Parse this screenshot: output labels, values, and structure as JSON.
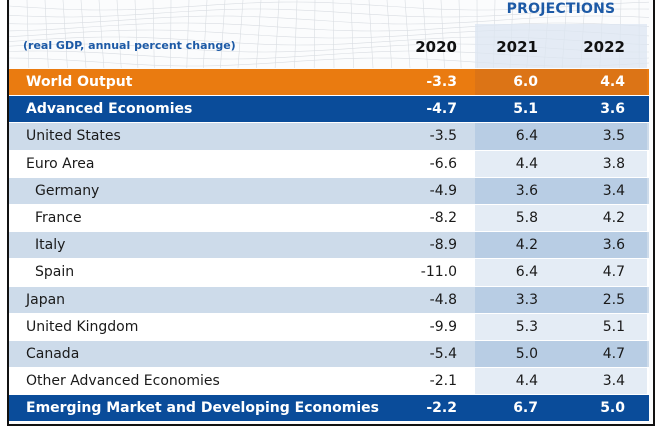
{
  "header": {
    "projections_label": "PROJECTIONS",
    "subtitle": "(real GDP, annual percent change)",
    "years": [
      "2020",
      "2021",
      "2022"
    ]
  },
  "colors": {
    "world_output": "#ea7b10",
    "aggregate": "#0a4c9a",
    "shaded_row": "#cddbea",
    "header_text": "#1d5aa6"
  },
  "chart_data": {
    "type": "table",
    "title": "",
    "subtitle": "(real GDP, annual percent change)",
    "group_label": "PROJECTIONS",
    "projection_columns": [
      "2021",
      "2022"
    ],
    "columns": [
      "2020",
      "2021",
      "2022"
    ],
    "rows": [
      {
        "label": "World Output",
        "values": [
          "-3.3",
          "6.0",
          "4.4"
        ],
        "style": "orange"
      },
      {
        "label": "Advanced Economies",
        "values": [
          "-4.7",
          "5.1",
          "3.6"
        ],
        "style": "navy"
      },
      {
        "label": "United States",
        "values": [
          "-3.5",
          "6.4",
          "3.5"
        ],
        "style": "shade"
      },
      {
        "label": "Euro Area",
        "values": [
          "-6.6",
          "4.4",
          "3.8"
        ],
        "style": "plain"
      },
      {
        "label": "Germany",
        "values": [
          "-4.9",
          "3.6",
          "3.4"
        ],
        "style": "shade",
        "indent": true
      },
      {
        "label": "France",
        "values": [
          "-8.2",
          "5.8",
          "4.2"
        ],
        "style": "plain",
        "indent": true
      },
      {
        "label": "Italy",
        "values": [
          "-8.9",
          "4.2",
          "3.6"
        ],
        "style": "shade",
        "indent": true
      },
      {
        "label": "Spain",
        "values": [
          "-11.0",
          "6.4",
          "4.7"
        ],
        "style": "plain",
        "indent": true
      },
      {
        "label": "Japan",
        "values": [
          "-4.8",
          "3.3",
          "2.5"
        ],
        "style": "shade"
      },
      {
        "label": "United Kingdom",
        "values": [
          "-9.9",
          "5.3",
          "5.1"
        ],
        "style": "plain"
      },
      {
        "label": "Canada",
        "values": [
          "-5.4",
          "5.0",
          "4.7"
        ],
        "style": "shade"
      },
      {
        "label": "Other Advanced Economies",
        "values": [
          "-2.1",
          "4.4",
          "3.4"
        ],
        "style": "plain"
      },
      {
        "label": "Emerging Market and Developing Economies",
        "values": [
          "-2.2",
          "6.7",
          "5.0"
        ],
        "style": "navy"
      }
    ]
  }
}
